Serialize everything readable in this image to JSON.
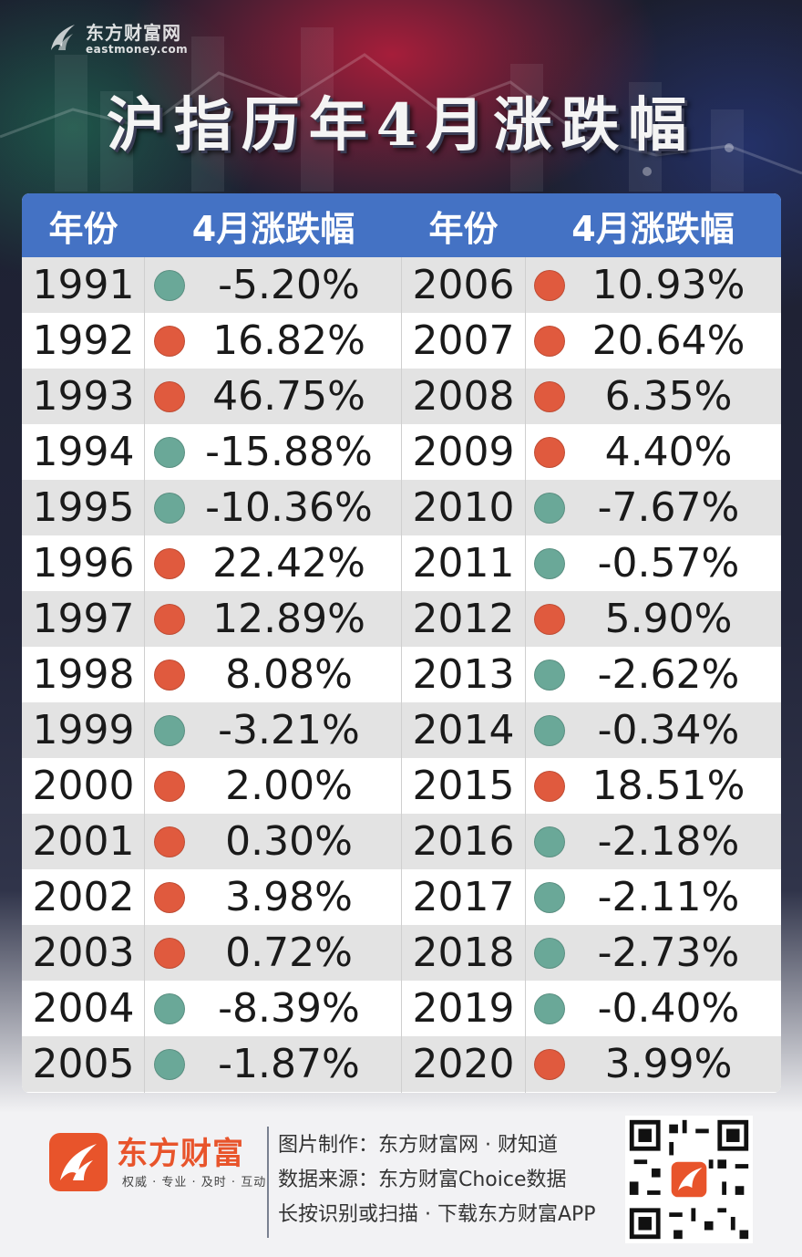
{
  "header": {
    "brand_cn": "东方财富网",
    "brand_en": "eastmoney.com",
    "title": "沪指历年4月涨跌幅"
  },
  "table": {
    "col_year": "年份",
    "col_change": "4月涨跌幅",
    "colors": {
      "up": "#e05a3e",
      "down": "#6aa898",
      "header_bg": "#4472c4"
    },
    "left": [
      {
        "year": "1991",
        "change": "-5.20%",
        "dir": "down"
      },
      {
        "year": "1992",
        "change": "16.82%",
        "dir": "up"
      },
      {
        "year": "1993",
        "change": "46.75%",
        "dir": "up"
      },
      {
        "year": "1994",
        "change": "-15.88%",
        "dir": "down"
      },
      {
        "year": "1995",
        "change": "-10.36%",
        "dir": "down"
      },
      {
        "year": "1996",
        "change": "22.42%",
        "dir": "up"
      },
      {
        "year": "1997",
        "change": "12.89%",
        "dir": "up"
      },
      {
        "year": "1998",
        "change": "8.08%",
        "dir": "up"
      },
      {
        "year": "1999",
        "change": "-3.21%",
        "dir": "down"
      },
      {
        "year": "2000",
        "change": "2.00%",
        "dir": "up"
      },
      {
        "year": "2001",
        "change": "0.30%",
        "dir": "up"
      },
      {
        "year": "2002",
        "change": "3.98%",
        "dir": "up"
      },
      {
        "year": "2003",
        "change": "0.72%",
        "dir": "up"
      },
      {
        "year": "2004",
        "change": "-8.39%",
        "dir": "down"
      },
      {
        "year": "2005",
        "change": "-1.87%",
        "dir": "down"
      }
    ],
    "right": [
      {
        "year": "2006",
        "change": "10.93%",
        "dir": "up"
      },
      {
        "year": "2007",
        "change": "20.64%",
        "dir": "up"
      },
      {
        "year": "2008",
        "change": "6.35%",
        "dir": "up"
      },
      {
        "year": "2009",
        "change": "4.40%",
        "dir": "up"
      },
      {
        "year": "2010",
        "change": "-7.67%",
        "dir": "down"
      },
      {
        "year": "2011",
        "change": "-0.57%",
        "dir": "down"
      },
      {
        "year": "2012",
        "change": "5.90%",
        "dir": "up"
      },
      {
        "year": "2013",
        "change": "-2.62%",
        "dir": "down"
      },
      {
        "year": "2014",
        "change": "-0.34%",
        "dir": "down"
      },
      {
        "year": "2015",
        "change": "18.51%",
        "dir": "up"
      },
      {
        "year": "2016",
        "change": "-2.18%",
        "dir": "down"
      },
      {
        "year": "2017",
        "change": "-2.11%",
        "dir": "down"
      },
      {
        "year": "2018",
        "change": "-2.73%",
        "dir": "down"
      },
      {
        "year": "2019",
        "change": "-0.40%",
        "dir": "down"
      },
      {
        "year": "2020",
        "change": "3.99%",
        "dir": "up"
      }
    ]
  },
  "footer": {
    "brand_name": "东方财富",
    "slogan": "权威 · 专业 · 及时 · 互动",
    "credit_1": "图片制作：东方财富网 · 财知道",
    "credit_2": "数据来源：东方财富Choice数据",
    "credit_3": "长按识别或扫描 · 下载东方财富APP",
    "qr_icon": "qr-code"
  }
}
